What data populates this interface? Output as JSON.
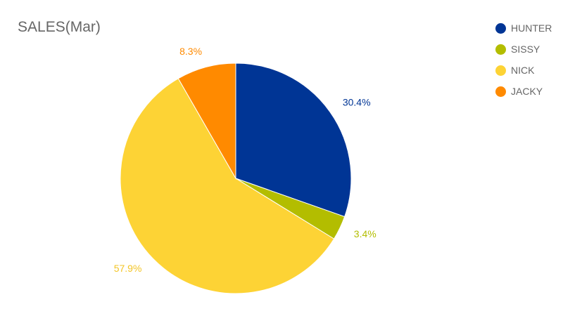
{
  "chart_data": {
    "type": "pie",
    "title": "SALES(Mar)",
    "categories": [
      "HUNTER",
      "SISSY",
      "NICK",
      "JACKY"
    ],
    "values": [
      30.4,
      3.4,
      57.9,
      8.3
    ],
    "data_labels": [
      "30.4%",
      "3.4%",
      "57.9%",
      "8.3%"
    ],
    "colors": [
      "#003595",
      "#b3bd00",
      "#fdd335",
      "#ff8a00"
    ],
    "legend": "top-right"
  }
}
